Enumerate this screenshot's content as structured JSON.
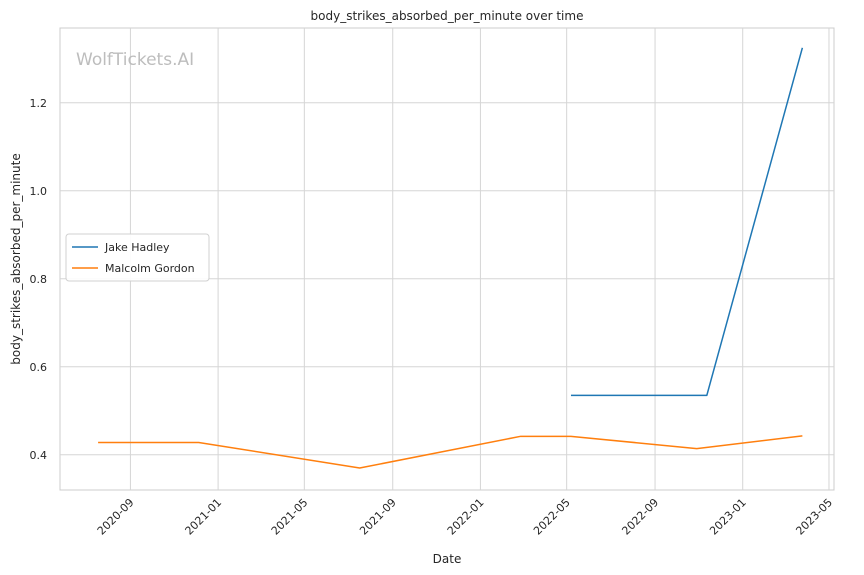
{
  "chart_data": {
    "type": "line",
    "title": "body_strikes_absorbed_per_minute over time",
    "xlabel": "Date",
    "ylabel": "body_strikes_absorbed_per_minute",
    "watermark": "WolfTickets.AI",
    "xlim": [
      "2020-05-26",
      "2023-05-08"
    ],
    "ylim": [
      0.32,
      1.37
    ],
    "x_ticks": [
      "2020-09",
      "2021-01",
      "2021-05",
      "2021-09",
      "2022-01",
      "2022-05",
      "2022-09",
      "2023-01",
      "2023-05"
    ],
    "y_ticks": [
      "0.4",
      "0.6",
      "0.8",
      "1.0",
      "1.2"
    ],
    "grid": true,
    "legend_position": "center-left",
    "series": [
      {
        "name": "Jake Hadley",
        "color": "#1f77b4",
        "points": [
          {
            "x": "2022-05-07",
            "y": 0.535
          },
          {
            "x": "2022-11-12",
            "y": 0.535
          },
          {
            "x": "2023-03-25",
            "y": 1.325
          }
        ]
      },
      {
        "name": "Malcolm Gordon",
        "color": "#ff7f0e",
        "points": [
          {
            "x": "2020-07-18",
            "y": 0.428
          },
          {
            "x": "2020-12-05",
            "y": 0.428
          },
          {
            "x": "2021-07-17",
            "y": 0.37
          },
          {
            "x": "2022-02-26",
            "y": 0.442
          },
          {
            "x": "2022-05-07",
            "y": 0.442
          },
          {
            "x": "2022-10-29",
            "y": 0.414
          },
          {
            "x": "2023-03-25",
            "y": 0.443
          }
        ]
      }
    ]
  }
}
